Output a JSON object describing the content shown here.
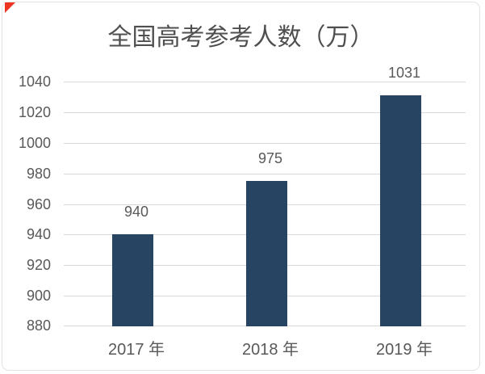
{
  "decorations": {
    "corner_marker": "red-triangle",
    "corner_marker_color": "#ee3524"
  },
  "chart_data": {
    "type": "bar",
    "title": "全国高考参考人数（万）",
    "categories": [
      "2017 年",
      "2018 年",
      "2019 年"
    ],
    "values": [
      940,
      975,
      1031
    ],
    "data_labels": [
      "940",
      "975",
      "1031"
    ],
    "yticks": [
      880,
      900,
      920,
      940,
      960,
      980,
      1000,
      1020,
      1040
    ],
    "ylim": [
      880,
      1040
    ],
    "xlabel": "",
    "ylabel": "",
    "grid": true,
    "legend": "none",
    "colors": {
      "bar": "#274563",
      "gridline": "#d8d8d8",
      "title_text": "#4f4f4f",
      "axis_text": "#595959",
      "frame_border": "#e3e3e3",
      "background": "#ffffff"
    }
  }
}
